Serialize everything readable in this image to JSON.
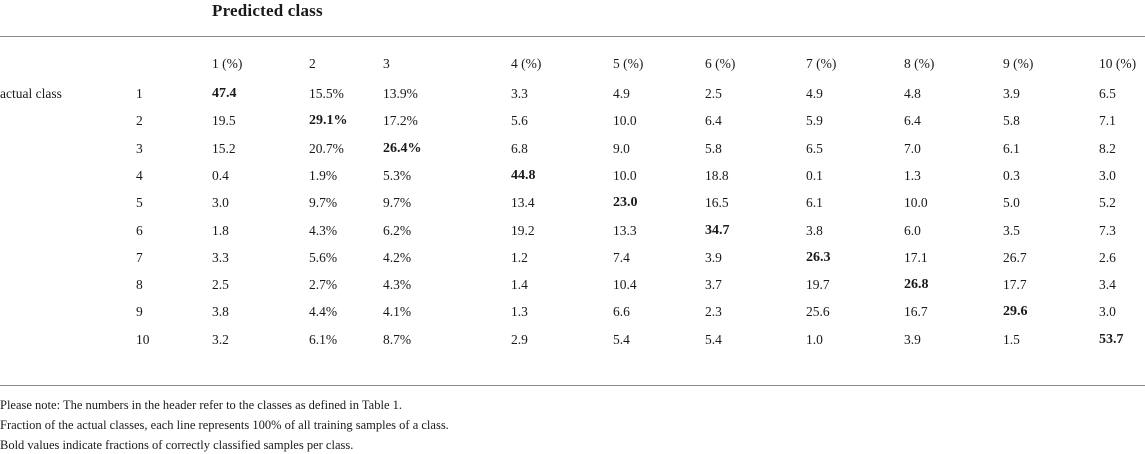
{
  "title": "Predicted class",
  "row_header": "actual class",
  "columns": [
    "1 (%)",
    "2",
    "3",
    "4 (%)",
    "5 (%)",
    "6 (%)",
    "7 (%)",
    "8 (%)",
    "9 (%)",
    "10 (%)"
  ],
  "rows": [
    {
      "label": "1",
      "values": [
        "47.4",
        "15.5%",
        "13.9%",
        "3.3",
        "4.9",
        "2.5",
        "4.9",
        "4.8",
        "3.9",
        "6.5"
      ],
      "bold": 0
    },
    {
      "label": "2",
      "values": [
        "19.5",
        "29.1%",
        "17.2%",
        "5.6",
        "10.0",
        "6.4",
        "5.9",
        "6.4",
        "5.8",
        "7.1"
      ],
      "bold": 1
    },
    {
      "label": "3",
      "values": [
        "15.2",
        "20.7%",
        "26.4%",
        "6.8",
        "9.0",
        "5.8",
        "6.5",
        "7.0",
        "6.1",
        "8.2"
      ],
      "bold": 2
    },
    {
      "label": "4",
      "values": [
        "0.4",
        "1.9%",
        "5.3%",
        "44.8",
        "10.0",
        "18.8",
        "0.1",
        "1.3",
        "0.3",
        "3.0"
      ],
      "bold": 3
    },
    {
      "label": "5",
      "values": [
        "3.0",
        "9.7%",
        "9.7%",
        "13.4",
        "23.0",
        "16.5",
        "6.1",
        "10.0",
        "5.0",
        "5.2"
      ],
      "bold": 4
    },
    {
      "label": "6",
      "values": [
        "1.8",
        "4.3%",
        "6.2%",
        "19.2",
        "13.3",
        "34.7",
        "3.8",
        "6.0",
        "3.5",
        "7.3"
      ],
      "bold": 5
    },
    {
      "label": "7",
      "values": [
        "3.3",
        "5.6%",
        "4.2%",
        "1.2",
        "7.4",
        "3.9",
        "26.3",
        "17.1",
        "26.7",
        "2.6"
      ],
      "bold": 6
    },
    {
      "label": "8",
      "values": [
        "2.5",
        "2.7%",
        "4.3%",
        "1.4",
        "10.4",
        "3.7",
        "19.7",
        "26.8",
        "17.7",
        "3.4"
      ],
      "bold": 7
    },
    {
      "label": "9",
      "values": [
        "3.8",
        "4.4%",
        "4.1%",
        "1.3",
        "6.6",
        "2.3",
        "25.6",
        "16.7",
        "29.6",
        "3.0"
      ],
      "bold": 8
    },
    {
      "label": "10",
      "values": [
        "3.2",
        "6.1%",
        "8.7%",
        "2.9",
        "5.4",
        "5.4",
        "1.0",
        "3.9",
        "1.5",
        "53.7"
      ],
      "bold": 9
    }
  ],
  "notes": [
    "Please note: The numbers in the header refer to the classes as defined in Table 1.",
    "Fraction of the actual classes, each line represents 100% of all training samples of a class.",
    "Bold values indicate fractions of correctly classified samples per class."
  ]
}
